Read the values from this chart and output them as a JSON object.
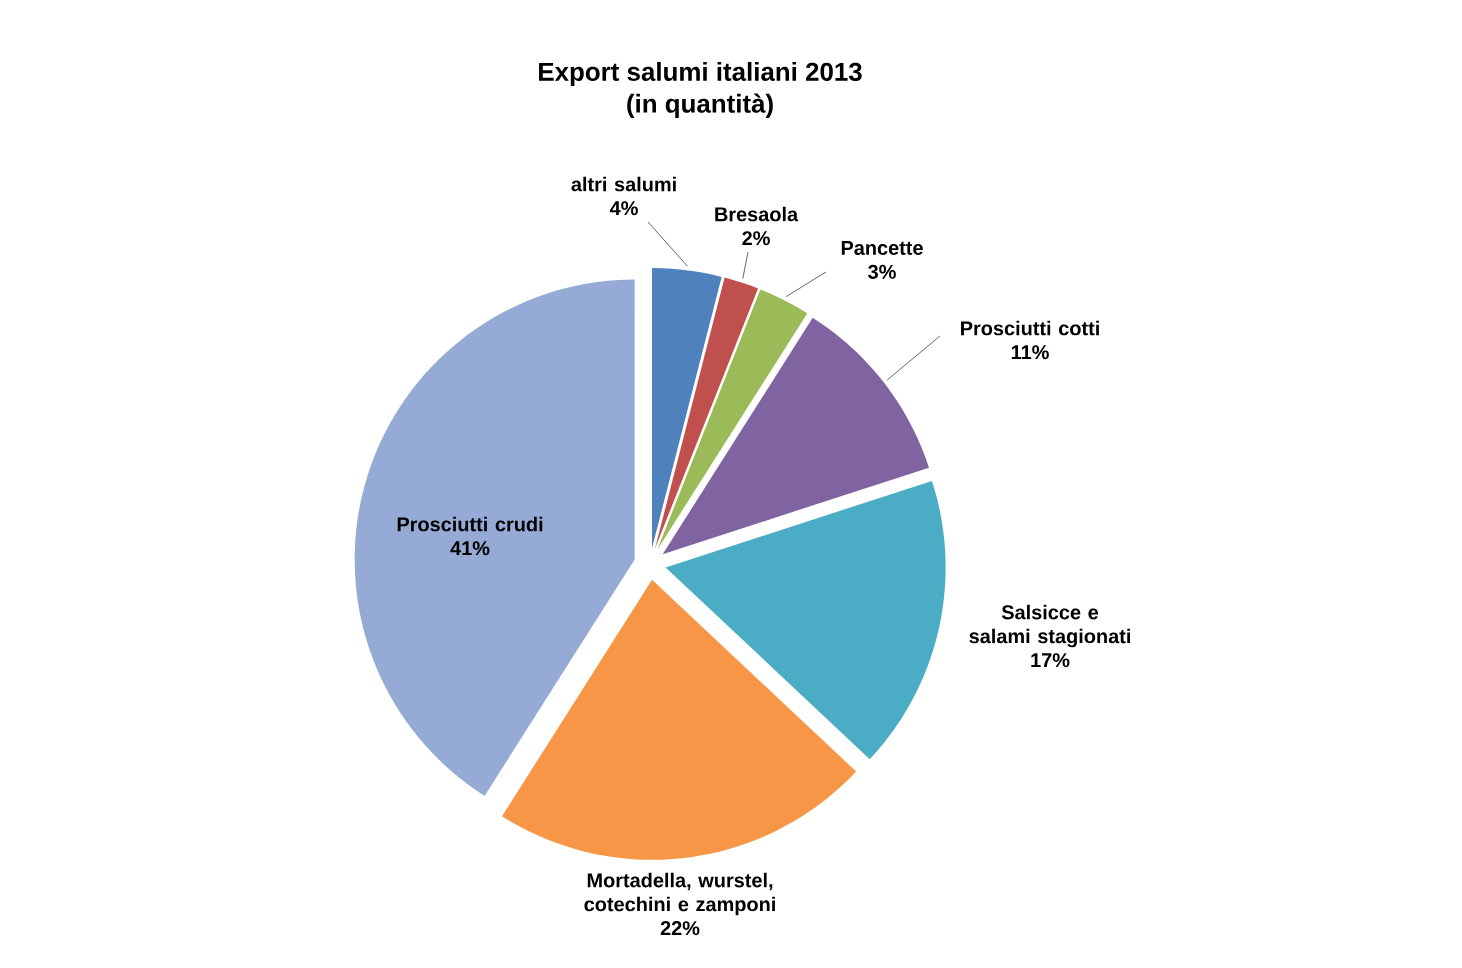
{
  "chart_data": {
    "type": "pie",
    "title": "Export salumi italiani 2013",
    "subtitle": "(in  quantità)",
    "categories": [
      "altri salumi",
      "Bresaola",
      "Pancette",
      "Prosciutti cotti",
      "Salsicce e salami stagionati",
      "Mortadella, wurstel, cotechini e zamponi",
      "Prosciutti crudi"
    ],
    "values": [
      4,
      2,
      3,
      11,
      17,
      22,
      41
    ],
    "value_labels": [
      "4%",
      "2%",
      "3%",
      "11%",
      "17%",
      "22%",
      "41%"
    ],
    "colors": [
      "#4f81bd",
      "#c0504d",
      "#9bbb59",
      "#8064a2",
      "#4bacc6",
      "#f79646",
      "#95abd5"
    ]
  }
}
